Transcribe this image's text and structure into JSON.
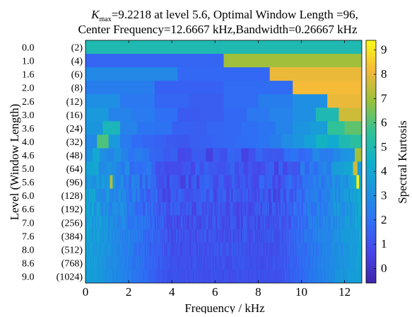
{
  "chart_data": {
    "type": "heatmap",
    "title_line1_k": "K",
    "title_line1_sub": "max",
    "title_line1_rest": "=9.2218 at level 5.6, Optimal Window Length =96,",
    "title_line2": "Center Frequency=12.6667 kHz,Bandwidth=0.26667 kHz",
    "xlabel": "Frequency / kHz",
    "ylabel": "Level (Window Length)",
    "colorbar_label": "Spectral Kurtosis",
    "xlim": [
      0,
      12.8
    ],
    "xticks": [
      "0",
      "2",
      "4",
      "6",
      "8",
      "10",
      "12"
    ],
    "colorbar_range": [
      -0.6,
      9.4
    ],
    "colorbar_ticks": [
      "0",
      "1",
      "2",
      "3",
      "4",
      "5",
      "6",
      "7",
      "8",
      "9"
    ],
    "colormap": "parula",
    "y_levels": [
      {
        "level": "0.0",
        "window": "(2)"
      },
      {
        "level": "1.0",
        "window": "(4)"
      },
      {
        "level": "1.6",
        "window": "(6)"
      },
      {
        "level": "2.0",
        "window": "(8)"
      },
      {
        "level": "2.6",
        "window": "(12)"
      },
      {
        "level": "3.0",
        "window": "(16)"
      },
      {
        "level": "3.6",
        "window": "(24)"
      },
      {
        "level": "4.0",
        "window": "(32)"
      },
      {
        "level": "4.6",
        "window": "(48)"
      },
      {
        "level": "5.0",
        "window": "(64)"
      },
      {
        "level": "5.6",
        "window": "(96)"
      },
      {
        "level": "6.0",
        "window": "(128)"
      },
      {
        "level": "6.6",
        "window": "(192)"
      },
      {
        "level": "7.0",
        "window": "(256)"
      },
      {
        "level": "7.6",
        "window": "(384)"
      },
      {
        "level": "8.0",
        "window": "(512)"
      },
      {
        "level": "8.6",
        "window": "(768)"
      },
      {
        "level": "9.0",
        "window": "(1024)"
      }
    ],
    "rows": [
      [
        5.0,
        5.0
      ],
      [
        1.6,
        7.0
      ],
      [
        2.8,
        1.7,
        8.0
      ],
      [
        2.4,
        1.5,
        1.8,
        8.2
      ],
      [
        3.0,
        2.2,
        1.6,
        1.4,
        1.8,
        2.4,
        3.0,
        8.0
      ],
      [
        3.4,
        2.6,
        2.3,
        1.9,
        1.3,
        1.4,
        1.7,
        2.2,
        2.6,
        3.0,
        5.0,
        7.6
      ],
      [
        3.3,
        4.8,
        2.6,
        2.1,
        2.0,
        1.5,
        1.4,
        1.6,
        1.7,
        1.9,
        2.1,
        2.6,
        3.2,
        3.6,
        5.6,
        6.2
      ],
      [
        2.8,
        6.0,
        3.4,
        2.3,
        1.8,
        1.6,
        1.5,
        1.3,
        1.2,
        1.4,
        1.5,
        1.6,
        1.7,
        1.8,
        1.9,
        2.1,
        2.4,
        2.9,
        3.3,
        3.8,
        4.6,
        4.2,
        5.0,
        5.4
      ]
    ],
    "rows_note": "Rows 0-7 list the spectral kurtosis of each equal-width frequency band across 0-12.8 kHz; rows 8-17 are fine-band noise around 0.5-3.5 with peak 9.2218 at level 5.6 near 12.6667 kHz."
  }
}
